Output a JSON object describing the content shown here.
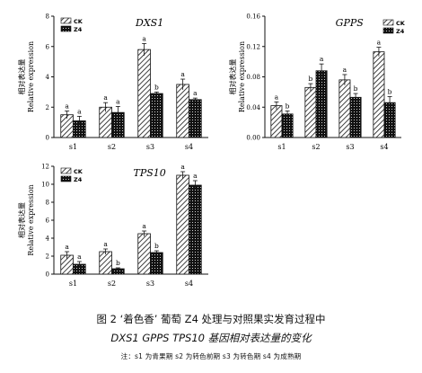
{
  "chart_data": [
    {
      "type": "bar",
      "title": "DXS1",
      "ylabel_cn": "相对表达量",
      "ylabel_en": "Relative expression",
      "categories": [
        "s1",
        "s2",
        "s3",
        "s4"
      ],
      "ylim": [
        0,
        8
      ],
      "yticks": [
        "0",
        "2",
        "4",
        "6",
        "8"
      ],
      "series": [
        {
          "name": "CK",
          "values": [
            1.5,
            2.0,
            5.8,
            3.5
          ],
          "errors": [
            0.25,
            0.3,
            0.4,
            0.35
          ],
          "sig": [
            "a",
            "a",
            "a",
            "a"
          ]
        },
        {
          "name": "Z4",
          "values": [
            1.1,
            1.65,
            2.9,
            2.5
          ],
          "errors": [
            0.3,
            0.4,
            0.1,
            0.1
          ],
          "sig": [
            "a",
            "a",
            "b",
            "a"
          ]
        }
      ],
      "legend": "top-left"
    },
    {
      "type": "bar",
      "title": "GPPS",
      "ylabel_cn": "相对表达量",
      "ylabel_en": "Relative expression",
      "categories": [
        "s1",
        "s2",
        "s3",
        "s4"
      ],
      "ylim": [
        0,
        0.16
      ],
      "yticks": [
        "0.00",
        "0.04",
        "0.08",
        "0.12",
        "0.16"
      ],
      "series": [
        {
          "name": "CK",
          "values": [
            0.042,
            0.066,
            0.076,
            0.113
          ],
          "errors": [
            0.005,
            0.005,
            0.007,
            0.006
          ],
          "sig": [
            "a",
            "b",
            "a",
            "a"
          ]
        },
        {
          "name": "Z4",
          "values": [
            0.031,
            0.088,
            0.053,
            0.046
          ],
          "errors": [
            0.004,
            0.009,
            0.005,
            0.008
          ],
          "sig": [
            "b",
            "a",
            "b",
            "b"
          ]
        }
      ],
      "legend": "top-right"
    },
    {
      "type": "bar",
      "title": "TPS10",
      "ylabel_cn": "相对表达量",
      "ylabel_en": "Relative expression",
      "categories": [
        "s1",
        "s2",
        "s3",
        "s4"
      ],
      "ylim": [
        0,
        12
      ],
      "yticks": [
        "0",
        "2",
        "4",
        "6",
        "8",
        "10",
        "12"
      ],
      "series": [
        {
          "name": "CK",
          "values": [
            2.1,
            2.5,
            4.5,
            11.0
          ],
          "errors": [
            0.4,
            0.3,
            0.3,
            0.4
          ],
          "sig": [
            "a",
            "a",
            "a",
            "a"
          ]
        },
        {
          "name": "Z4",
          "values": [
            1.1,
            0.6,
            2.4,
            9.9
          ],
          "errors": [
            0.3,
            0.1,
            0.2,
            0.5
          ],
          "sig": [
            "a",
            "b",
            "b",
            "a"
          ]
        }
      ],
      "legend": "top-left"
    }
  ],
  "caption": {
    "line1": "图 2 ‘着色香’ 葡萄 Z4 处理与对照果实发育过程中",
    "line2": "DXS1 GPPS TPS10 基因相对表达量的变化",
    "note": "注：s1 为青果期  s2 为转色前期  s3 为转色期  s4 为成熟期"
  },
  "colors": {
    "axis": "#111111",
    "ck_fill": "#ffffff",
    "z4_fill": "#222222"
  }
}
